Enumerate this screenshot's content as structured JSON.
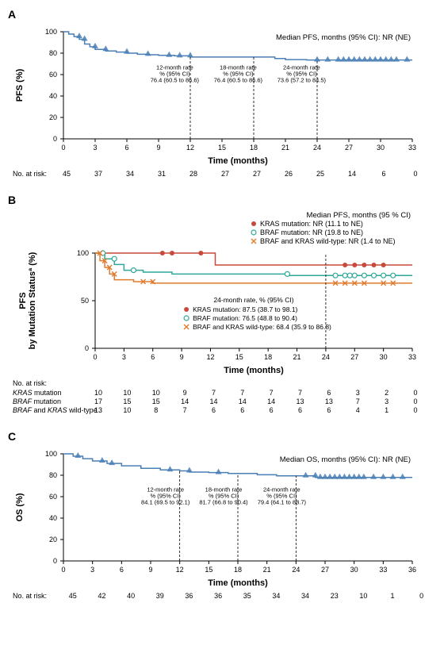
{
  "colors": {
    "axis": "#000000",
    "lineA": "#4a7fb5",
    "lineC": "#4a7fb5",
    "kras": "#c94a3c",
    "braf": "#2fa89a",
    "wt": "#e07b2e",
    "dash": "#000000",
    "tickmark": "#4a7fb5"
  },
  "panelA": {
    "letter": "A",
    "ylabel": "PFS (%)",
    "xlabel": "Time (months)",
    "median_text": "Median PFS, months (95% CI): NR (NE)",
    "xlim": [
      0,
      33
    ],
    "ylim": [
      0,
      100
    ],
    "xticks": [
      0,
      3,
      6,
      9,
      12,
      15,
      18,
      21,
      24,
      27,
      30,
      33
    ],
    "yticks": [
      0,
      20,
      40,
      60,
      80,
      100
    ],
    "line": [
      [
        0,
        100
      ],
      [
        0.5,
        97.8
      ],
      [
        1,
        95.5
      ],
      [
        1.5,
        93
      ],
      [
        2,
        88.5
      ],
      [
        2.5,
        86
      ],
      [
        3,
        83.5
      ],
      [
        4,
        82
      ],
      [
        5,
        81
      ],
      [
        6,
        80
      ],
      [
        7,
        79
      ],
      [
        8,
        78.5
      ],
      [
        9,
        78
      ],
      [
        10.5,
        77.5
      ],
      [
        12,
        76.4
      ],
      [
        17,
        76.4
      ],
      [
        18,
        76.4
      ],
      [
        20,
        75
      ],
      [
        21,
        74
      ],
      [
        23,
        73.6
      ],
      [
        24,
        73.6
      ],
      [
        33,
        73.6
      ]
    ],
    "censor_x": [
      1.5,
      2,
      3,
      4,
      6,
      8,
      10,
      11,
      12,
      24,
      25,
      26,
      26.5,
      27,
      27.5,
      28,
      28.5,
      29,
      29.5,
      30,
      30.5,
      31,
      31.5,
      32.5
    ],
    "dashes_x": [
      12,
      18,
      24
    ],
    "boxes": [
      {
        "x": 12,
        "title": "12-month rate",
        "sub": "% (95% CI)",
        "val": "76.4 (60.5 to 86.6)"
      },
      {
        "x": 18,
        "title": "18-month rate",
        "sub": "% (95% CI)",
        "val": "76.4 (60.5 to 86.6)"
      },
      {
        "x": 24,
        "title": "24-month rate",
        "sub": "% (95% CI)",
        "val": "73.6 (57.2 to 84.5)"
      }
    ],
    "risk_label": "No. at risk:",
    "risk": [
      45,
      37,
      34,
      31,
      28,
      27,
      27,
      26,
      25,
      14,
      6,
      0
    ]
  },
  "panelB": {
    "letter": "B",
    "ylabel": "PFS\nby Mutation Statusª (%)",
    "xlabel": "Time (months)",
    "xlim": [
      0,
      33
    ],
    "ylim": [
      0,
      100
    ],
    "xticks": [
      0,
      3,
      6,
      9,
      12,
      15,
      18,
      21,
      24,
      27,
      30,
      33
    ],
    "yticks": [
      0,
      50,
      100
    ],
    "legend_top": [
      "Median PFS, months (95 % CI)",
      "KRAS mutation: NR (11.1 to NE)",
      "BRAF mutation: NR (19.8 to NE)",
      "BRAF and KRAS wild-type: NR (1.4 to NE)"
    ],
    "legend_box_title": "24-month rate, % (95% CI)",
    "legend_box": [
      "KRAS mutation: 87.5 (38.7 to 98.1)",
      "BRAF mutation: 76.5 (48.8 to 90.4)",
      "BRAF and KRAS wild-type: 68.4 (35.9 to 86.8)"
    ],
    "dash_x": 24,
    "series": {
      "kras": {
        "line": [
          [
            0,
            100
          ],
          [
            1.5,
            100
          ],
          [
            12,
            100
          ],
          [
            12.5,
            87.5
          ],
          [
            33,
            87.5
          ]
        ],
        "censor_x": [
          7,
          8,
          11,
          26,
          27,
          28,
          29,
          30
        ]
      },
      "braf": {
        "line": [
          [
            0,
            100
          ],
          [
            1,
            94
          ],
          [
            2,
            88
          ],
          [
            3,
            82
          ],
          [
            4,
            82
          ],
          [
            5,
            80
          ],
          [
            8,
            78
          ],
          [
            19,
            78
          ],
          [
            20,
            76.5
          ],
          [
            33,
            76.5
          ]
        ],
        "censor_x": [
          0.8,
          2,
          4,
          20,
          25,
          26,
          26.5,
          27,
          28,
          29,
          30,
          31
        ]
      },
      "wt": {
        "line": [
          [
            0,
            100
          ],
          [
            0.5,
            92
          ],
          [
            1,
            85
          ],
          [
            1.5,
            78
          ],
          [
            2,
            72
          ],
          [
            4,
            70
          ],
          [
            6,
            68.4
          ],
          [
            33,
            68.4
          ]
        ],
        "censor_x": [
          0.5,
          1,
          1.5,
          2,
          5,
          6,
          25,
          26,
          27,
          28,
          30,
          31
        ]
      }
    },
    "risk_label": "No. at risk:",
    "risk_rows": [
      {
        "label": "KRAS mutation",
        "vals": [
          10,
          10,
          10,
          9,
          7,
          7,
          7,
          7,
          6,
          3,
          2,
          0
        ]
      },
      {
        "label": "BRAF mutation",
        "vals": [
          17,
          15,
          15,
          14,
          14,
          14,
          14,
          13,
          13,
          7,
          3,
          0
        ]
      },
      {
        "label": "BRAF and KRAS wild-type",
        "vals": [
          13,
          10,
          8,
          7,
          6,
          6,
          6,
          6,
          6,
          4,
          1,
          0
        ]
      }
    ]
  },
  "panelC": {
    "letter": "C",
    "ylabel": "OS (%)",
    "xlabel": "Time (months)",
    "median_text": "Median OS, months (95% CI): NR (NE)",
    "xlim": [
      0,
      36
    ],
    "ylim": [
      0,
      100
    ],
    "xticks": [
      0,
      3,
      6,
      9,
      12,
      15,
      18,
      21,
      24,
      27,
      30,
      33,
      36
    ],
    "yticks": [
      0,
      20,
      40,
      60,
      80,
      100
    ],
    "line": [
      [
        0,
        100
      ],
      [
        1,
        97.8
      ],
      [
        2,
        95.5
      ],
      [
        3,
        93.3
      ],
      [
        4.5,
        91
      ],
      [
        6,
        88.8
      ],
      [
        8,
        86.5
      ],
      [
        10,
        85
      ],
      [
        12,
        84.1
      ],
      [
        13,
        83
      ],
      [
        15,
        82.5
      ],
      [
        17,
        81.7
      ],
      [
        18,
        81.7
      ],
      [
        20,
        80.5
      ],
      [
        22,
        79.4
      ],
      [
        24,
        79.4
      ],
      [
        26,
        78
      ],
      [
        36,
        78
      ]
    ],
    "censor_x": [
      1.5,
      4,
      5,
      11,
      13,
      16,
      25,
      26,
      26.5,
      27,
      27.5,
      28,
      28.5,
      29,
      29.5,
      30,
      30.5,
      31,
      32,
      33,
      34,
      35
    ],
    "dashes_x": [
      12,
      18,
      24
    ],
    "boxes": [
      {
        "x": 12,
        "title": "12-month rate",
        "sub": "% (95% CI)",
        "val": "84.1 (69.5 to 92.1)"
      },
      {
        "x": 18,
        "title": "18-month rate",
        "sub": "% (95% CI)",
        "val": "81.7 (66.8 to 90.4)"
      },
      {
        "x": 24,
        "title": "24-month rate",
        "sub": "% (95% CI)",
        "val": "79.4 (64.1 to 88.7)"
      }
    ],
    "risk_label": "No. at risk:",
    "risk": [
      45,
      42,
      40,
      39,
      36,
      36,
      35,
      34,
      34,
      23,
      10,
      1,
      0
    ]
  }
}
